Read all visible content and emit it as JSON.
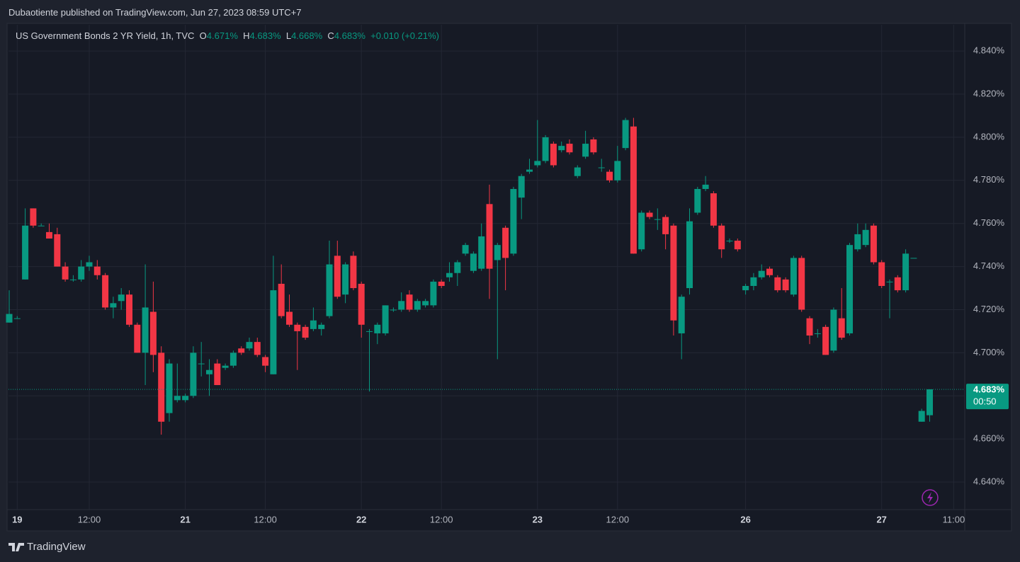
{
  "header": {
    "publisher": "Dubaotiente published on TradingView.com, Jun 27, 2023 08:59 UTC+7"
  },
  "legend": {
    "symbol": "US Government Bonds 2 YR Yield, 1h, TVC",
    "open_key": "O",
    "open": "4.671%",
    "high_key": "H",
    "high": "4.683%",
    "low_key": "L",
    "low": "4.668%",
    "close_key": "C",
    "close": "4.683%",
    "change": "+0.010 (+0.21%)"
  },
  "footer": {
    "brand": "TradingView"
  },
  "chart_data": {
    "type": "candlestick",
    "categories": [
      null,
      "19",
      null,
      null,
      null,
      null,
      null,
      null,
      null,
      null,
      "12:00",
      null,
      null,
      null,
      null,
      null,
      null,
      null,
      null,
      null,
      null,
      null,
      "21",
      null,
      null,
      null,
      null,
      null,
      null,
      null,
      null,
      null,
      "12:00",
      null,
      null,
      null,
      null,
      null,
      null,
      null,
      null,
      null,
      null,
      null,
      "22",
      null,
      null,
      null,
      null,
      null,
      null,
      null,
      null,
      null,
      "12:00",
      null,
      null,
      null,
      null,
      null,
      null,
      null,
      null,
      null,
      null,
      null,
      "23",
      null,
      null,
      null,
      null,
      null,
      null,
      null,
      null,
      null,
      "12:00",
      null,
      null,
      null,
      null,
      null,
      null,
      null,
      null,
      null,
      null,
      null,
      null,
      null,
      null,
      null,
      "26",
      null,
      null,
      null,
      null,
      null,
      null,
      null,
      null,
      null,
      null,
      null,
      null,
      null,
      null,
      null,
      null,
      "27",
      null,
      null,
      null,
      null,
      null,
      null,
      null,
      null,
      "11:00"
    ],
    "open": [
      4.714,
      4.716,
      4.734,
      4.767,
      4.759,
      4.756,
      4.755,
      4.74,
      4.734,
      4.734,
      4.74,
      4.74,
      4.736,
      4.721,
      4.724,
      4.727,
      4.713,
      4.7,
      4.719,
      4.7,
      4.672,
      4.678,
      4.678,
      4.68,
      4.695,
      4.69,
      4.695,
      4.693,
      4.694,
      4.702,
      4.702,
      4.705,
      4.698,
      4.69,
      4.732,
      4.719,
      4.713,
      4.712,
      4.711,
      4.711,
      4.717,
      4.745,
      4.727,
      4.745,
      4.732,
      4.71,
      4.709,
      4.709,
      4.72,
      4.72,
      4.727,
      4.72,
      4.722,
      4.722,
      4.733,
      4.735,
      4.737,
      4.746,
      4.738,
      4.739,
      4.769,
      4.743,
      4.758,
      4.746,
      4.772,
      4.784,
      4.787,
      4.789,
      4.797,
      4.794,
      4.797,
      4.782,
      4.791,
      4.799,
      4.786,
      4.784,
      4.78,
      4.795,
      4.805,
      4.748,
      4.765,
      4.762,
      4.763,
      4.759,
      4.709,
      4.73,
      4.765,
      4.776,
      4.774,
      4.759,
      4.752,
      4.752,
      4.729,
      4.731,
      4.735,
      4.739,
      4.735,
      4.734,
      4.727,
      4.744,
      4.716,
      4.709,
      4.712,
      4.701,
      4.716,
      4.709,
      4.748,
      4.75,
      4.759,
      4.742,
      4.733,
      4.735,
      4.729,
      4.744,
      4.668,
      4.671,
      null,
      null,
      null
    ],
    "high": [
      4.729,
      4.717,
      4.767,
      4.767,
      4.76,
      4.76,
      4.758,
      4.742,
      4.736,
      4.743,
      4.745,
      4.743,
      4.737,
      4.726,
      4.73,
      4.729,
      4.714,
      4.741,
      4.733,
      4.703,
      4.697,
      4.695,
      4.681,
      4.703,
      4.705,
      4.697,
      4.697,
      4.695,
      4.701,
      4.703,
      4.707,
      4.707,
      4.699,
      4.745,
      4.741,
      4.727,
      4.714,
      4.713,
      4.721,
      4.714,
      4.752,
      4.752,
      4.742,
      4.747,
      4.733,
      4.711,
      4.714,
      4.722,
      4.721,
      4.728,
      4.729,
      4.725,
      4.725,
      4.734,
      4.734,
      4.742,
      4.743,
      4.751,
      4.747,
      4.76,
      4.778,
      4.751,
      4.759,
      4.777,
      4.783,
      4.79,
      4.808,
      4.801,
      4.798,
      4.798,
      4.799,
      4.787,
      4.803,
      4.8,
      4.79,
      4.785,
      4.796,
      4.809,
      4.809,
      4.766,
      4.766,
      4.767,
      4.764,
      4.76,
      4.727,
      4.767,
      4.777,
      4.782,
      4.775,
      4.76,
      4.753,
      4.753,
      4.732,
      4.737,
      4.741,
      4.74,
      4.736,
      4.735,
      4.745,
      4.745,
      4.717,
      4.711,
      4.713,
      4.721,
      4.73,
      4.751,
      4.76,
      4.76,
      4.76,
      4.743,
      4.734,
      4.736,
      4.748,
      4.744,
      4.674,
      4.683,
      null,
      null,
      null
    ],
    "low": [
      4.714,
      4.716,
      4.734,
      4.758,
      4.759,
      4.753,
      4.74,
      4.733,
      4.733,
      4.733,
      4.738,
      4.734,
      4.72,
      4.716,
      4.72,
      4.712,
      4.7,
      4.685,
      4.691,
      4.662,
      4.668,
      4.677,
      4.677,
      4.679,
      4.689,
      4.68,
      4.685,
      4.692,
      4.693,
      4.699,
      4.701,
      4.698,
      4.691,
      4.69,
      4.716,
      4.712,
      4.692,
      4.706,
      4.71,
      4.708,
      4.716,
      4.725,
      4.723,
      4.729,
      4.707,
      4.682,
      4.704,
      4.708,
      4.719,
      4.719,
      4.719,
      4.719,
      4.721,
      4.721,
      4.73,
      4.733,
      4.731,
      4.745,
      4.737,
      4.738,
      4.725,
      4.697,
      4.729,
      4.745,
      4.762,
      4.783,
      4.786,
      4.788,
      4.786,
      4.793,
      4.792,
      4.781,
      4.79,
      4.792,
      4.784,
      4.779,
      4.779,
      4.794,
      4.746,
      4.747,
      4.762,
      4.757,
      4.748,
      4.708,
      4.697,
      4.727,
      4.764,
      4.775,
      4.758,
      4.744,
      4.751,
      4.747,
      4.727,
      4.729,
      4.734,
      4.735,
      4.728,
      4.728,
      4.726,
      4.719,
      4.704,
      4.707,
      4.699,
      4.7,
      4.706,
      4.708,
      4.747,
      4.749,
      4.741,
      4.73,
      4.716,
      4.728,
      4.728,
      4.744,
      4.668,
      4.668,
      null,
      null,
      null
    ],
    "close": [
      4.718,
      4.716,
      4.759,
      4.759,
      4.759,
      4.753,
      4.74,
      4.734,
      4.734,
      4.74,
      4.742,
      4.736,
      4.721,
      4.723,
      4.727,
      4.713,
      4.7,
      4.721,
      4.699,
      4.668,
      4.695,
      4.68,
      4.68,
      4.7,
      4.695,
      4.692,
      4.685,
      4.694,
      4.7,
      4.7,
      4.705,
      4.699,
      4.694,
      4.729,
      4.717,
      4.713,
      4.71,
      4.707,
      4.715,
      4.713,
      4.741,
      4.726,
      4.741,
      4.73,
      4.713,
      4.71,
      4.713,
      4.722,
      4.72,
      4.724,
      4.72,
      4.724,
      4.724,
      4.733,
      4.731,
      4.737,
      4.742,
      4.75,
      4.746,
      4.754,
      4.739,
      4.75,
      4.744,
      4.776,
      4.782,
      4.785,
      4.789,
      4.8,
      4.787,
      4.796,
      4.793,
      4.786,
      4.797,
      4.793,
      4.786,
      4.78,
      4.789,
      4.808,
      4.746,
      4.765,
      4.763,
      4.762,
      4.755,
      4.715,
      4.726,
      4.761,
      4.776,
      4.778,
      4.759,
      4.748,
      4.752,
      4.748,
      4.731,
      4.735,
      4.738,
      4.736,
      4.729,
      4.729,
      4.744,
      4.72,
      4.708,
      4.709,
      4.699,
      4.72,
      4.707,
      4.75,
      4.755,
      4.757,
      4.742,
      4.731,
      4.733,
      4.729,
      4.746,
      4.744,
      4.673,
      4.683,
      null,
      null,
      null
    ],
    "up_color": "#089981",
    "down_color": "#f23645",
    "ylim": [
      4.6272,
      4.8522
    ],
    "yticks": [
      {
        "value": 4.64,
        "label": "4.640%"
      },
      {
        "value": 4.66,
        "label": "4.660%"
      },
      {
        "value": 4.68,
        "label": "4.680%"
      },
      {
        "value": 4.7,
        "label": "4.700%"
      },
      {
        "value": 4.72,
        "label": "4.720%"
      },
      {
        "value": 4.74,
        "label": "4.740%"
      },
      {
        "value": 4.76,
        "label": "4.760%"
      },
      {
        "value": 4.78,
        "label": "4.780%"
      },
      {
        "value": 4.8,
        "label": "4.800%"
      },
      {
        "value": 4.82,
        "label": "4.820%"
      },
      {
        "value": 4.84,
        "label": "4.840%"
      }
    ],
    "grid": true,
    "last_price": {
      "value": 4.683,
      "label": "4.683%"
    },
    "countdown": "00:50"
  }
}
